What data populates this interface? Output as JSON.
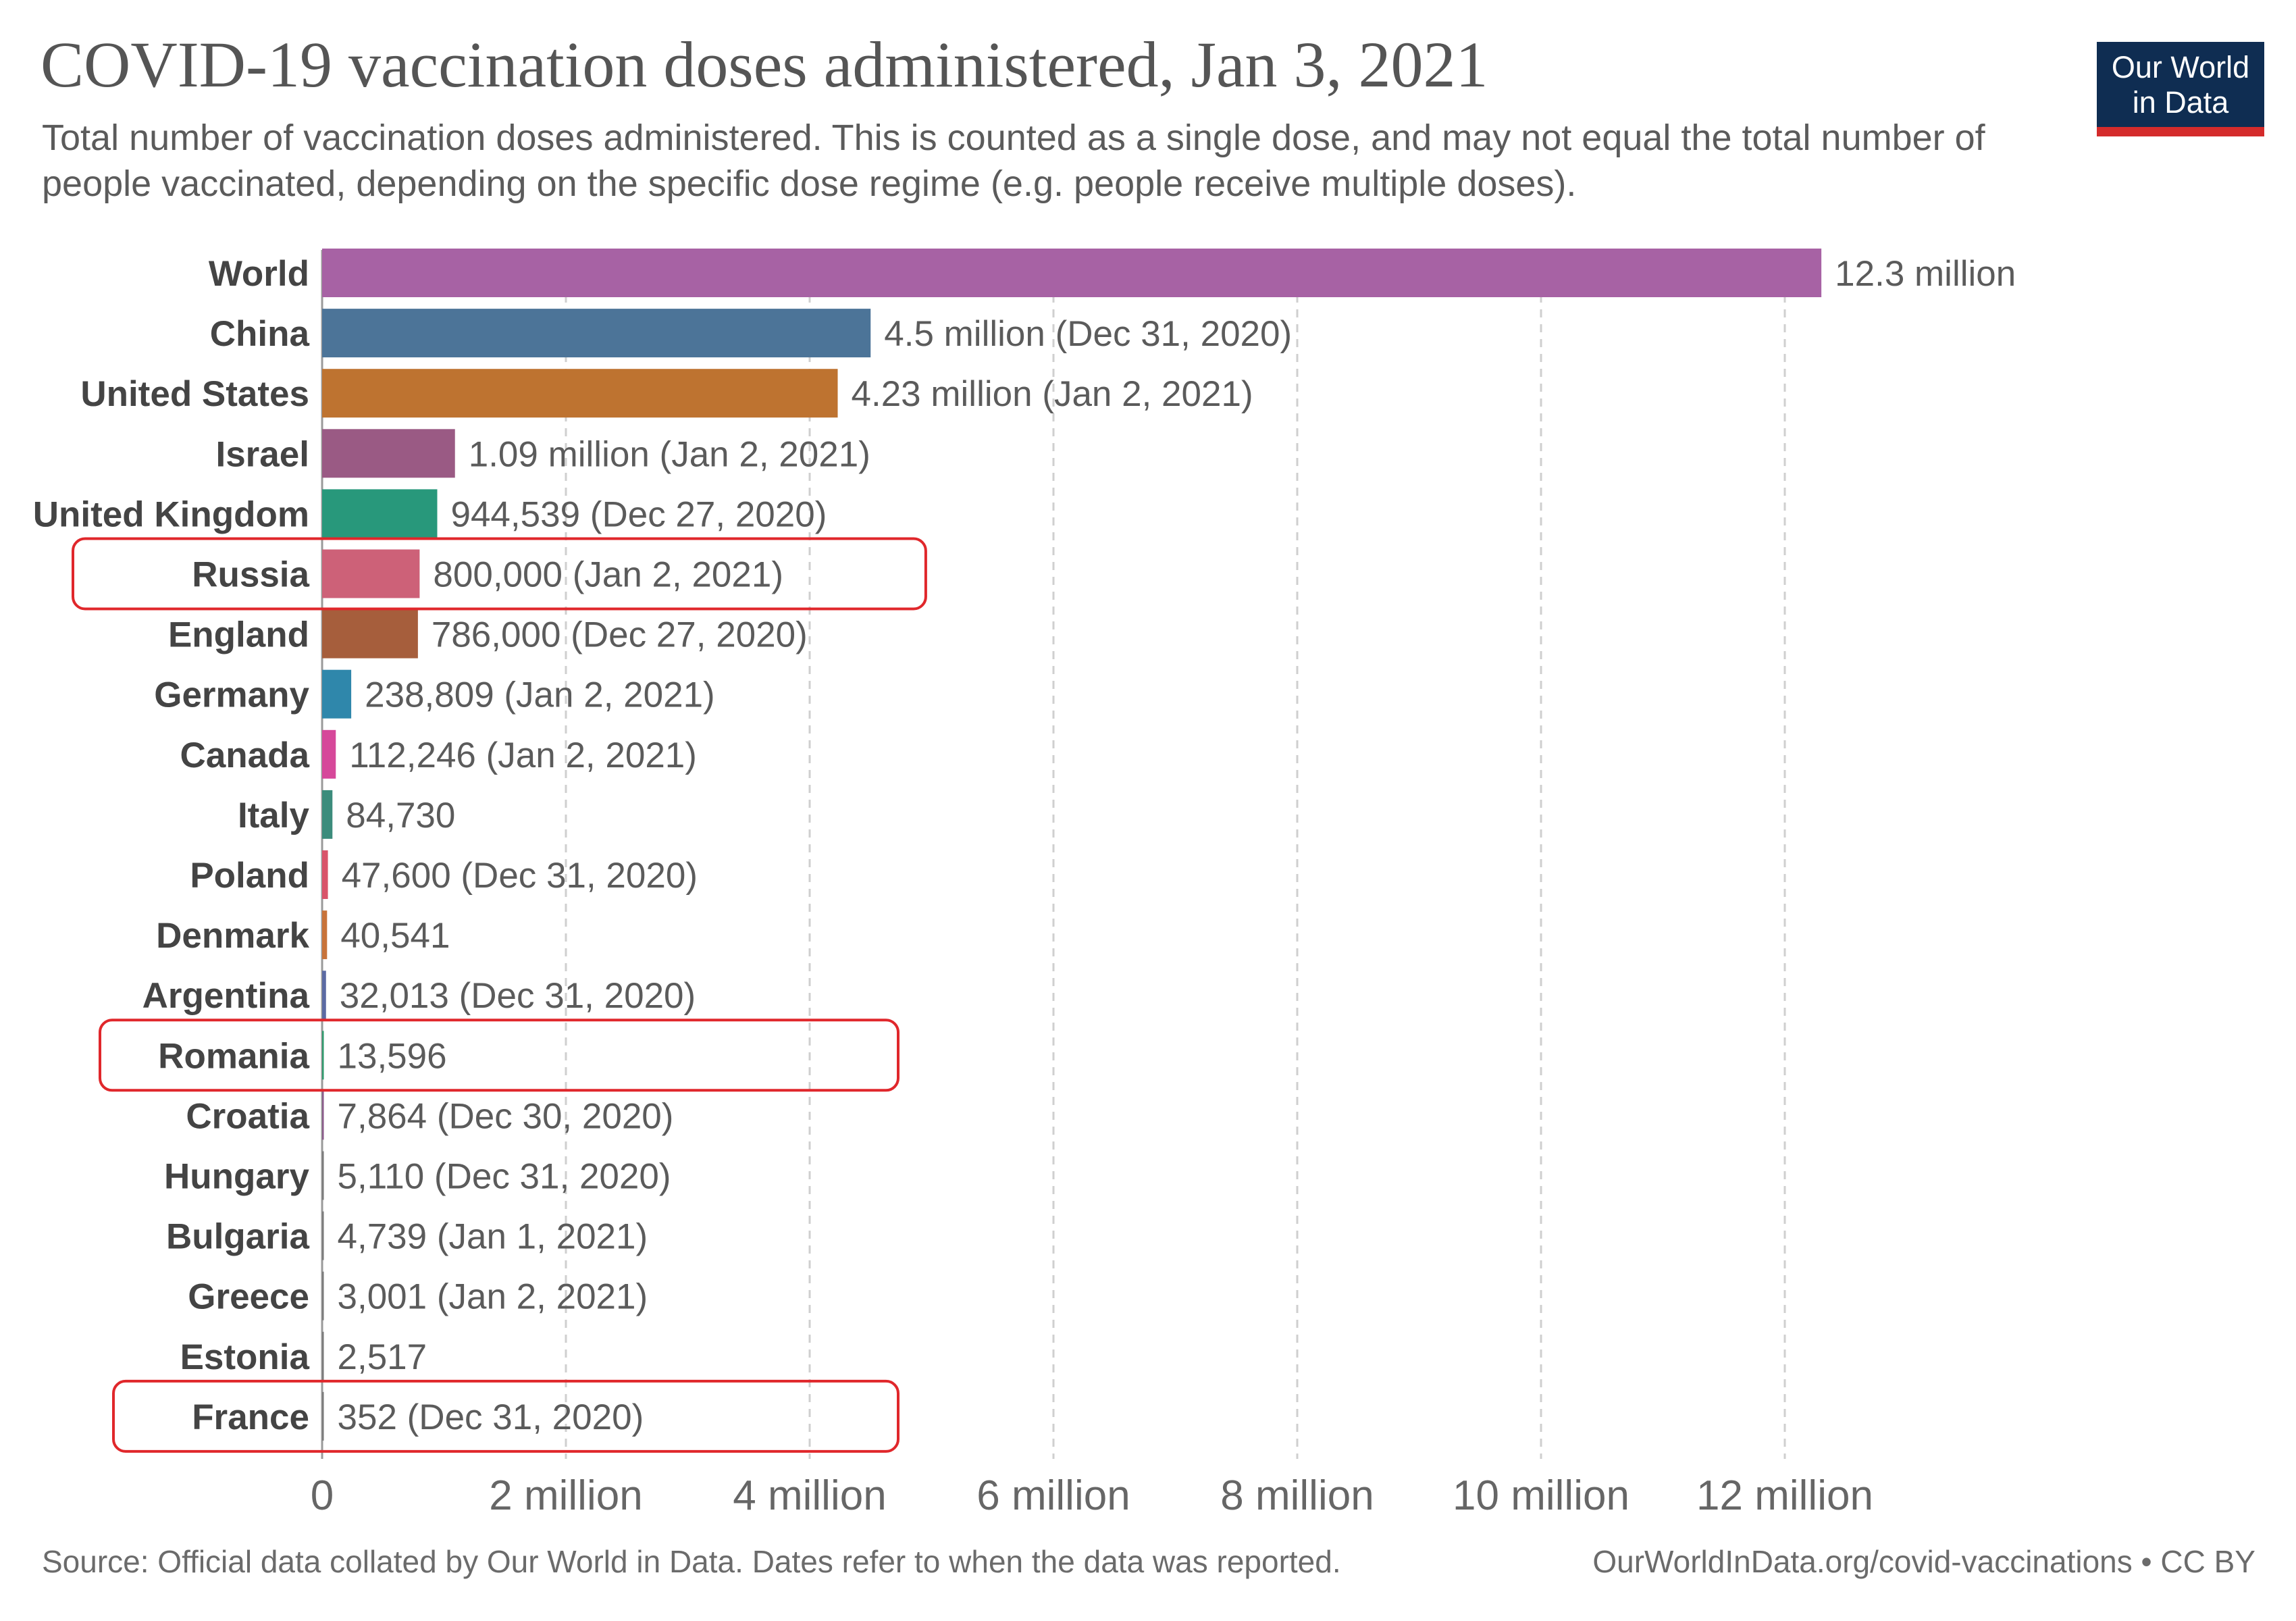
{
  "header": {
    "title": "COVID-19 vaccination doses administered, Jan 3, 2021",
    "subtitle": "Total number of vaccination doses administered. This is counted as a single dose, and may not equal the total number of people vaccinated, depending on the specific dose regime (e.g. people receive multiple doses).",
    "logo_line1": "Our World",
    "logo_line2": "in Data"
  },
  "footer": {
    "source": "Source: Official data collated by Our World in Data. Dates refer to when the data was reported.",
    "attribution": "OurWorldInData.org/covid-vaccinations • CC BY"
  },
  "colors": {
    "grid": "#cfcfcf",
    "highlight_box": "#e0272b",
    "label_text": "#444444",
    "value_text": "#5b5b5b"
  },
  "chart_data": {
    "type": "bar",
    "orientation": "horizontal",
    "xlim": [
      0,
      12800000
    ],
    "x_ticks": [
      {
        "value": 0,
        "label": "0"
      },
      {
        "value": 2000000,
        "label": "2 million"
      },
      {
        "value": 4000000,
        "label": "4 million"
      },
      {
        "value": 6000000,
        "label": "6 million"
      },
      {
        "value": 8000000,
        "label": "8 million"
      },
      {
        "value": 10000000,
        "label": "10 million"
      },
      {
        "value": 12000000,
        "label": "12 million"
      }
    ],
    "grid": true,
    "bars": [
      {
        "category": "World",
        "value": 12300000,
        "label": "12.3 million",
        "color": "#a762a4",
        "highlighted": false
      },
      {
        "category": "China",
        "value": 4500000,
        "label": "4.5 million (Dec 31, 2020)",
        "color": "#4c7498",
        "highlighted": false
      },
      {
        "category": "United States",
        "value": 4230000,
        "label": "4.23 million (Jan 2, 2021)",
        "color": "#be7330",
        "highlighted": false
      },
      {
        "category": "Israel",
        "value": 1090000,
        "label": "1.09 million (Jan 2, 2021)",
        "color": "#9a5a84",
        "highlighted": false
      },
      {
        "category": "United Kingdom",
        "value": 944539,
        "label": "944,539 (Dec 27, 2020)",
        "color": "#28987b",
        "highlighted": false
      },
      {
        "category": "Russia",
        "value": 800000,
        "label": "800,000 (Jan 2, 2021)",
        "color": "#cd6178",
        "highlighted": true
      },
      {
        "category": "England",
        "value": 786000,
        "label": "786,000 (Dec 27, 2020)",
        "color": "#a65e3c",
        "highlighted": false
      },
      {
        "category": "Germany",
        "value": 238809,
        "label": "238,809 (Jan 2, 2021)",
        "color": "#2f87ab",
        "highlighted": false
      },
      {
        "category": "Canada",
        "value": 112246,
        "label": "112,246 (Jan 2, 2021)",
        "color": "#d6489a",
        "highlighted": false
      },
      {
        "category": "Italy",
        "value": 84730,
        "label": "84,730",
        "color": "#3c8c7c",
        "highlighted": false
      },
      {
        "category": "Poland",
        "value": 47600,
        "label": "47,600 (Dec 31, 2020)",
        "color": "#d9546a",
        "highlighted": false
      },
      {
        "category": "Denmark",
        "value": 40541,
        "label": "40,541",
        "color": "#c8733a",
        "highlighted": false
      },
      {
        "category": "Argentina",
        "value": 32013,
        "label": "32,013 (Dec 31, 2020)",
        "color": "#5b6aa3",
        "highlighted": false
      },
      {
        "category": "Romania",
        "value": 13596,
        "label": "13,596",
        "color": "#2e9a6c",
        "highlighted": true
      },
      {
        "category": "Croatia",
        "value": 7864,
        "label": "7,864 (Dec 30, 2020)",
        "color": "#8a5a8a",
        "highlighted": false
      },
      {
        "category": "Hungary",
        "value": 5110,
        "label": "5,110 (Dec 31, 2020)",
        "color": "#7a7a7a",
        "highlighted": false
      },
      {
        "category": "Bulgaria",
        "value": 4739,
        "label": "4,739 (Jan 1, 2021)",
        "color": "#7a7a7a",
        "highlighted": false
      },
      {
        "category": "Greece",
        "value": 3001,
        "label": "3,001 (Jan 2, 2021)",
        "color": "#7a7a7a",
        "highlighted": false
      },
      {
        "category": "Estonia",
        "value": 2517,
        "label": "2,517",
        "color": "#7a7a7a",
        "highlighted": false
      },
      {
        "category": "France",
        "value": 352,
        "label": "352 (Dec 31, 2020)",
        "color": "#7a7a7a",
        "highlighted": true
      }
    ]
  }
}
